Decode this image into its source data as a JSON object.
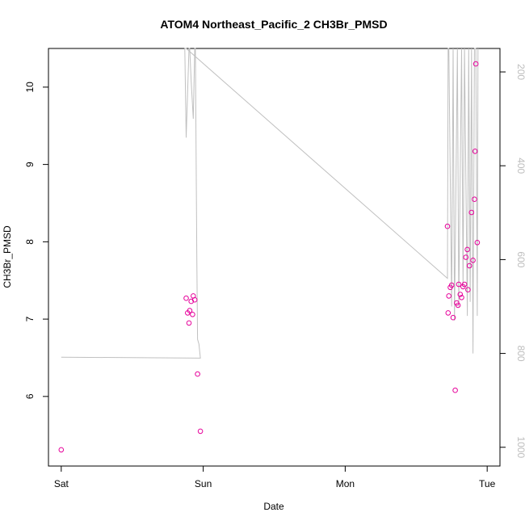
{
  "chart_data": {
    "type": "scatter",
    "title": "ATOM4 Northeast_Pacific_2 CH3Br_PMSD",
    "xlabel": "Date",
    "ylabel": "CH3Br_PMSD",
    "x_unit": "days from Sat 00:00",
    "xlim": [
      -0.09,
      3.09
    ],
    "ylim": [
      5.1,
      10.5
    ],
    "x_ticks": [
      {
        "value": 0,
        "label": "Sat"
      },
      {
        "value": 1,
        "label": "Sun"
      },
      {
        "value": 2,
        "label": "Mon"
      },
      {
        "value": 3,
        "label": "Tue"
      }
    ],
    "y_ticks": [
      6,
      7,
      8,
      9,
      10
    ],
    "y2_lim": [
      1040,
      150
    ],
    "y2_ticks": [
      200,
      400,
      600,
      800,
      1000
    ],
    "grid": false,
    "legend": "none",
    "series": [
      {
        "color": "#e6009a",
        "marker": "open-circle",
        "points": [
          [
            0.0,
            5.31
          ],
          [
            0.88,
            7.27
          ],
          [
            0.89,
            7.08
          ],
          [
            0.9,
            6.95
          ],
          [
            0.905,
            7.11
          ],
          [
            0.915,
            7.23
          ],
          [
            0.925,
            7.06
          ],
          [
            0.93,
            7.3
          ],
          [
            0.94,
            7.25
          ],
          [
            0.96,
            6.29
          ],
          [
            0.98,
            5.55
          ],
          [
            2.72,
            8.2
          ],
          [
            2.725,
            7.08
          ],
          [
            2.73,
            7.3
          ],
          [
            2.74,
            7.41
          ],
          [
            2.75,
            7.44
          ],
          [
            2.76,
            7.02
          ],
          [
            2.775,
            6.08
          ],
          [
            2.785,
            7.21
          ],
          [
            2.795,
            7.18
          ],
          [
            2.8,
            7.45
          ],
          [
            2.81,
            7.32
          ],
          [
            2.82,
            7.28
          ],
          [
            2.83,
            7.42
          ],
          [
            2.84,
            7.45
          ],
          [
            2.85,
            7.8
          ],
          [
            2.86,
            7.9
          ],
          [
            2.865,
            7.38
          ],
          [
            2.875,
            7.69
          ],
          [
            2.89,
            8.38
          ],
          [
            2.9,
            7.76
          ],
          [
            2.91,
            8.55
          ],
          [
            2.915,
            9.17
          ],
          [
            2.92,
            10.3
          ],
          [
            2.93,
            7.99
          ]
        ]
      },
      {
        "color": "#c0c0c0",
        "axis": "right",
        "line": [
          [
            0.0,
            808
          ],
          [
            0.98,
            810
          ],
          [
            0.97,
            780
          ],
          [
            0.96,
            770
          ],
          [
            0.955,
            600
          ],
          [
            0.945,
            150
          ],
          [
            0.94,
            150
          ],
          [
            0.93,
            300
          ],
          [
            0.915,
            220
          ],
          [
            0.905,
            150
          ],
          [
            0.9,
            150
          ],
          [
            0.88,
            340
          ],
          [
            0.87,
            150
          ],
          [
            0.88,
            150
          ],
          [
            2.72,
            640
          ],
          [
            2.725,
            150
          ],
          [
            2.73,
            150
          ],
          [
            2.75,
            700
          ],
          [
            2.76,
            150
          ],
          [
            2.77,
            730
          ],
          [
            2.79,
            150
          ],
          [
            2.8,
            700
          ],
          [
            2.82,
            150
          ],
          [
            2.83,
            660
          ],
          [
            2.84,
            150
          ],
          [
            2.86,
            720
          ],
          [
            2.87,
            150
          ],
          [
            2.88,
            690
          ],
          [
            2.89,
            150
          ],
          [
            2.9,
            800
          ],
          [
            2.91,
            150
          ],
          [
            2.92,
            150
          ],
          [
            2.93,
            720
          ],
          [
            2.935,
            150
          ]
        ]
      }
    ]
  }
}
